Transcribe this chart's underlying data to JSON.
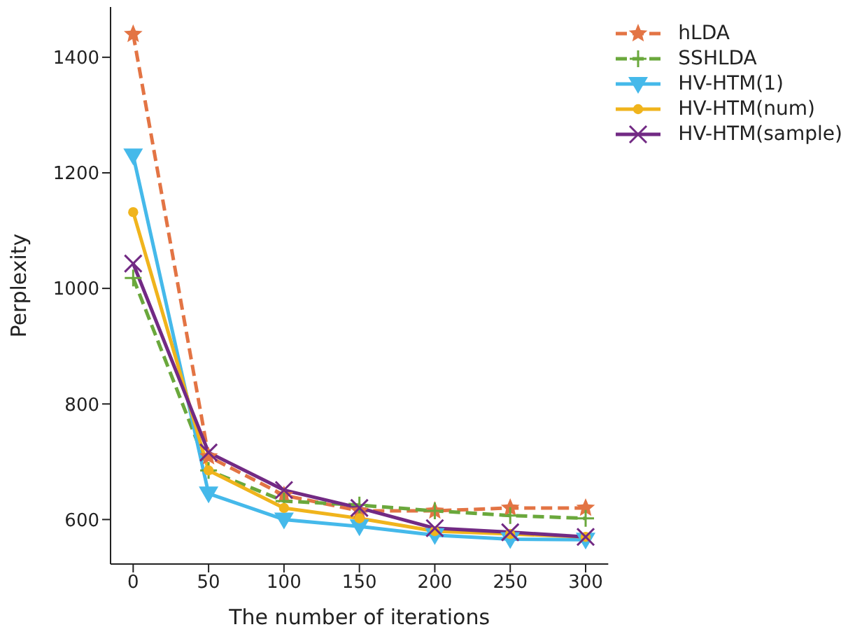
{
  "chart_data": {
    "type": "line",
    "xlabel": "The number of iterations",
    "ylabel": "Perplexity",
    "x": [
      0,
      50,
      100,
      150,
      200,
      250,
      300
    ],
    "xlim": [
      -15,
      315
    ],
    "xticks": [
      0,
      50,
      100,
      150,
      200,
      250,
      300
    ],
    "ylim": [
      523,
      1487
    ],
    "yticks": [
      600,
      800,
      1000,
      1200,
      1400
    ],
    "grid": false,
    "legend": "top right",
    "series": [
      {
        "name": "hLDA",
        "color": "#e37444",
        "values": [
          1440,
          709,
          642,
          615,
          615,
          620,
          620
        ],
        "marker": "star",
        "line_style": "dashed"
      },
      {
        "name": "SSHLDA",
        "color": "#6aa83c",
        "values": [
          1018,
          685,
          632,
          625,
          615,
          607,
          602
        ],
        "marker": "plus",
        "line_style": "dashed"
      },
      {
        "name": "HV-HTM(1)",
        "color": "#45b9ea",
        "values": [
          1230,
          645,
          600,
          588,
          573,
          566,
          565
        ],
        "marker": "triangle",
        "line_style": "solid"
      },
      {
        "name": "HV-HTM(num)",
        "color": "#f0b41c",
        "values": [
          1132,
          685,
          620,
          602,
          580,
          575,
          570
        ],
        "marker": "circle",
        "line_style": "solid"
      },
      {
        "name": "HV-HTM(sample)",
        "color": "#722a84",
        "values": [
          1043,
          716,
          651,
          620,
          585,
          578,
          570
        ],
        "marker": "cross",
        "line_style": "solid"
      }
    ]
  }
}
